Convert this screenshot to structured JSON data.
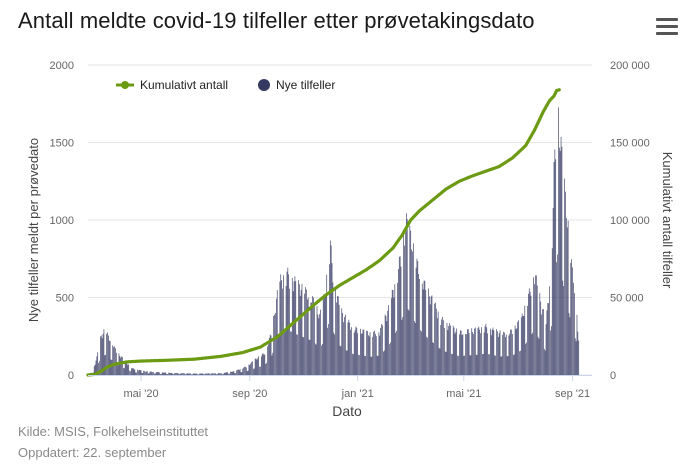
{
  "title": "Antall meldte covid-19 tilfeller etter prøvetakingsdato",
  "menu_icon": "hamburger-menu-icon",
  "footer": {
    "source": "Kilde: MSIS, Folkehelseinstituttet",
    "updated": "Oppdatert: 22. september"
  },
  "colors": {
    "bars": "#363a63",
    "line": "#6c9a13",
    "grid": "#e6e6e6",
    "axis_text": "#666666"
  },
  "chart_data": {
    "type": "bar+line",
    "xlabel": "Dato",
    "ylabel_left": "Nye tilfeller meldt per prøvedato",
    "ylabel_right": "Kumulativt antall tilfeller",
    "ylim_left": [
      0,
      2000
    ],
    "ylim_right": [
      0,
      200000
    ],
    "yticks_left": [
      {
        "value": 0,
        "label": "0"
      },
      {
        "value": 500,
        "label": "500"
      },
      {
        "value": 1000,
        "label": "1000"
      },
      {
        "value": 1500,
        "label": "1500"
      },
      {
        "value": 2000,
        "label": "2000"
      }
    ],
    "yticks_right": [
      {
        "value": 0,
        "label": "0"
      },
      {
        "value": 50000,
        "label": "50 000"
      },
      {
        "value": 100000,
        "label": "100 000"
      },
      {
        "value": 150000,
        "label": "150 000"
      },
      {
        "value": 200000,
        "label": "200 000"
      }
    ],
    "x_range_days": [
      0,
      570
    ],
    "xticks": [
      {
        "day": 60,
        "label": "mai '20"
      },
      {
        "day": 183,
        "label": "sep '20"
      },
      {
        "day": 305,
        "label": "jan '21"
      },
      {
        "day": 425,
        "label": "mai '21"
      },
      {
        "day": 548,
        "label": "sep '21"
      }
    ],
    "legend": [
      {
        "name": "Kumulativt antall",
        "marker": "line"
      },
      {
        "name": "Nye tilfeller",
        "marker": "circle"
      }
    ],
    "legend_position": "top-left",
    "series": [
      {
        "name": "Nye tilfeller",
        "type": "bar",
        "axis": "left",
        "points": [
          [
            0,
            5
          ],
          [
            5,
            20
          ],
          [
            10,
            120
          ],
          [
            14,
            250
          ],
          [
            17,
            290
          ],
          [
            20,
            310
          ],
          [
            23,
            260
          ],
          [
            27,
            230
          ],
          [
            32,
            160
          ],
          [
            40,
            110
          ],
          [
            50,
            45
          ],
          [
            65,
            25
          ],
          [
            90,
            15
          ],
          [
            120,
            10
          ],
          [
            150,
            12
          ],
          [
            165,
            25
          ],
          [
            180,
            60
          ],
          [
            190,
            110
          ],
          [
            200,
            150
          ],
          [
            208,
            300
          ],
          [
            214,
            550
          ],
          [
            218,
            650
          ],
          [
            225,
            700
          ],
          [
            232,
            650
          ],
          [
            240,
            600
          ],
          [
            248,
            560
          ],
          [
            256,
            500
          ],
          [
            262,
            400
          ],
          [
            268,
            550
          ],
          [
            274,
            900
          ],
          [
            278,
            650
          ],
          [
            285,
            450
          ],
          [
            292,
            380
          ],
          [
            300,
            320
          ],
          [
            310,
            300
          ],
          [
            320,
            280
          ],
          [
            330,
            300
          ],
          [
            340,
            450
          ],
          [
            348,
            650
          ],
          [
            355,
            850
          ],
          [
            360,
            1050
          ],
          [
            365,
            950
          ],
          [
            370,
            800
          ],
          [
            378,
            650
          ],
          [
            385,
            560
          ],
          [
            392,
            480
          ],
          [
            400,
            380
          ],
          [
            410,
            330
          ],
          [
            420,
            290
          ],
          [
            430,
            300
          ],
          [
            440,
            310
          ],
          [
            450,
            330
          ],
          [
            460,
            300
          ],
          [
            470,
            280
          ],
          [
            480,
            300
          ],
          [
            490,
            380
          ],
          [
            500,
            580
          ],
          [
            505,
            700
          ],
          [
            512,
            500
          ],
          [
            518,
            350
          ],
          [
            524,
            750
          ],
          [
            527,
            1380
          ],
          [
            531,
            1850
          ],
          [
            534,
            1600
          ],
          [
            537,
            1450
          ],
          [
            540,
            1200
          ],
          [
            544,
            950
          ],
          [
            548,
            700
          ],
          [
            552,
            520
          ],
          [
            555,
            230
          ]
        ]
      },
      {
        "name": "Kumulativt antall",
        "type": "line",
        "axis": "right",
        "points": [
          [
            0,
            0
          ],
          [
            8,
            400
          ],
          [
            15,
            2500
          ],
          [
            22,
            5200
          ],
          [
            30,
            7000
          ],
          [
            45,
            8500
          ],
          [
            60,
            9000
          ],
          [
            90,
            9500
          ],
          [
            120,
            10200
          ],
          [
            150,
            12000
          ],
          [
            175,
            14500
          ],
          [
            195,
            18000
          ],
          [
            215,
            25000
          ],
          [
            235,
            35000
          ],
          [
            255,
            45000
          ],
          [
            270,
            52000
          ],
          [
            285,
            58000
          ],
          [
            300,
            63000
          ],
          [
            315,
            68000
          ],
          [
            330,
            74000
          ],
          [
            345,
            82000
          ],
          [
            355,
            90000
          ],
          [
            365,
            100000
          ],
          [
            375,
            106000
          ],
          [
            390,
            113000
          ],
          [
            405,
            120000
          ],
          [
            420,
            125000
          ],
          [
            435,
            128500
          ],
          [
            450,
            131500
          ],
          [
            465,
            134500
          ],
          [
            480,
            140000
          ],
          [
            495,
            148000
          ],
          [
            505,
            158000
          ],
          [
            515,
            170000
          ],
          [
            522,
            177000
          ],
          [
            527,
            180000
          ],
          [
            530,
            183500
          ],
          [
            533,
            184000
          ]
        ]
      }
    ]
  }
}
